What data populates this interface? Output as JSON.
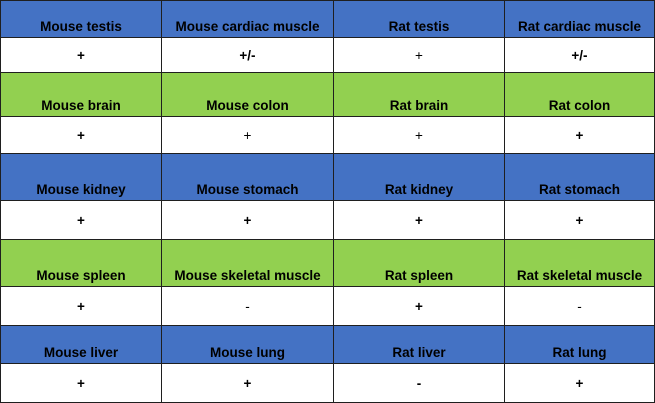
{
  "colors": {
    "blue_band": "#4472c4",
    "green_band": "#92d050",
    "value_row": "#ffffff",
    "grid_line": "#1f1f1f"
  },
  "table": {
    "rows": [
      {
        "band": "blue",
        "headers": [
          "Mouse testis",
          "Mouse cardiac muscle",
          "Rat testis",
          "Rat cardiac muscle"
        ],
        "values": [
          "+",
          "+/-",
          "+",
          "+/-"
        ],
        "bold": [
          true,
          true,
          false,
          true
        ]
      },
      {
        "band": "green",
        "headers": [
          "Mouse brain",
          "Mouse colon",
          "Rat brain",
          "Rat colon"
        ],
        "values": [
          "+",
          "+",
          "+",
          "+"
        ],
        "bold": [
          true,
          false,
          false,
          true
        ]
      },
      {
        "band": "blue",
        "headers": [
          "Mouse kidney",
          "Mouse stomach",
          "Rat kidney",
          "Rat stomach"
        ],
        "values": [
          "+",
          "+",
          "+",
          "+"
        ],
        "bold": [
          true,
          true,
          true,
          true
        ]
      },
      {
        "band": "green",
        "headers": [
          "Mouse spleen",
          "Mouse skeletal muscle",
          "Rat spleen",
          "Rat skeletal muscle"
        ],
        "values": [
          "+",
          "-",
          "+",
          "-"
        ],
        "bold": [
          true,
          false,
          true,
          false
        ]
      },
      {
        "band": "blue",
        "headers": [
          "Mouse liver",
          "Mouse lung",
          "Rat liver",
          "Rat lung"
        ],
        "values": [
          "+",
          "+",
          "-",
          "+"
        ],
        "bold": [
          true,
          true,
          true,
          true
        ]
      }
    ]
  }
}
